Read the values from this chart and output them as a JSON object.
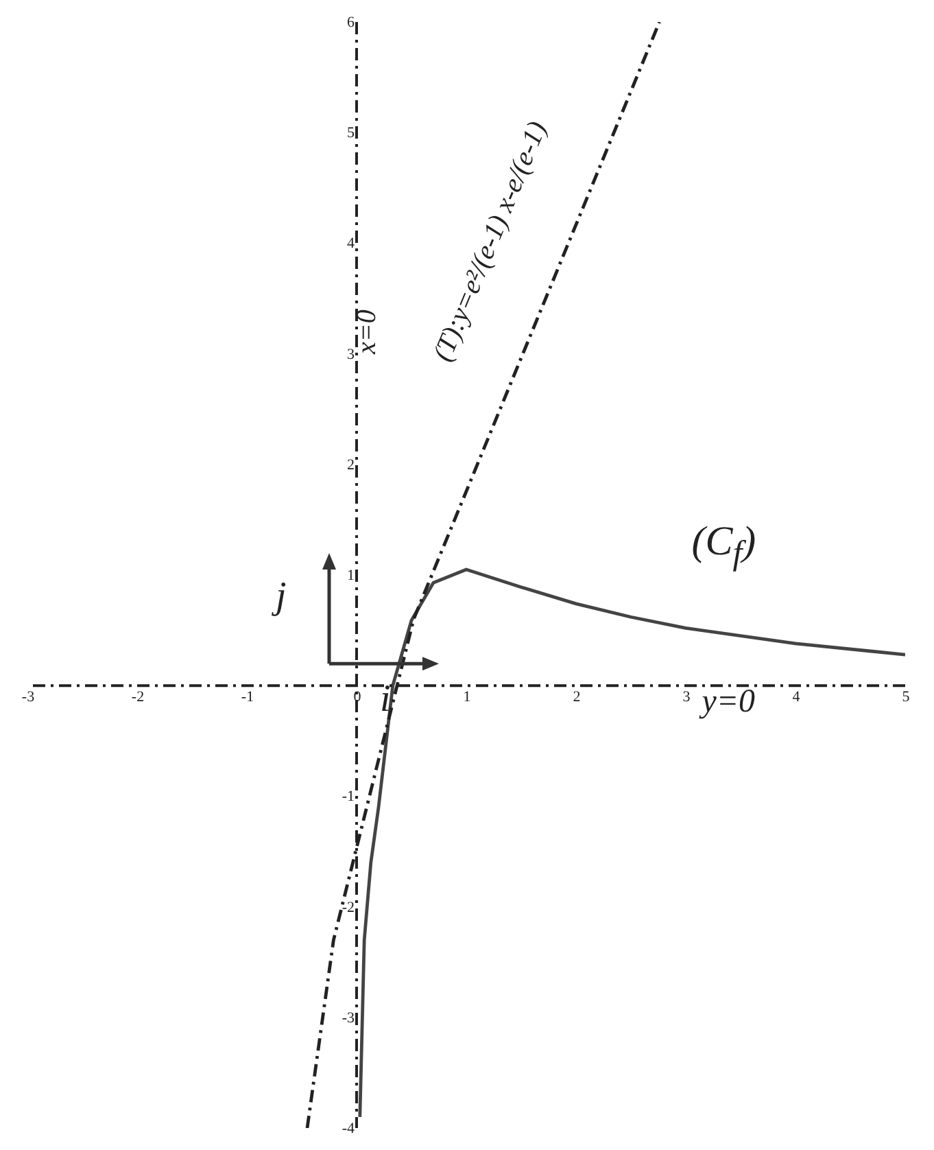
{
  "chart_data": {
    "type": "line",
    "xlim": [
      -3,
      5
    ],
    "ylim": [
      -4,
      6
    ],
    "xticks": [
      -3,
      -2,
      -1,
      0,
      1,
      2,
      3,
      4,
      5
    ],
    "yticks": [
      -4,
      -3,
      -2,
      -1,
      1,
      2,
      3,
      4,
      5,
      6
    ],
    "grid": false,
    "series": [
      {
        "name": "(C$_{f}$)",
        "color": "#444444",
        "line_style": "solid",
        "x": [
          0.03,
          0.07,
          0.13,
          0.2,
          0.33,
          0.5,
          0.7,
          1,
          1.5,
          2,
          2.5,
          3,
          4,
          5
        ],
        "values": [
          -3.9,
          -2.3,
          -1.6,
          -1.1,
          0,
          0.59,
          0.93,
          1.05,
          0.89,
          0.74,
          0.62,
          0.52,
          0.38,
          0.28
        ]
      },
      {
        "name": "(T):y=e²/(e-1) x-e/(e-1)",
        "color": "#222222",
        "line_style": "dashed",
        "x": [
          -0.45,
          -0.21,
          0.52,
          2.76
        ],
        "values": [
          -4,
          -2.3,
          0.6,
          6
        ]
      }
    ],
    "ref_lines": [
      {
        "axis": "x",
        "value": 0,
        "label": "x=0",
        "line_style": "dashed",
        "color": "#222222"
      },
      {
        "axis": "y",
        "value": 0,
        "label": "y=0",
        "line_style": "dashed",
        "color": "#222222"
      }
    ],
    "annotations": [
      "i⃗",
      "j⃗"
    ]
  }
}
